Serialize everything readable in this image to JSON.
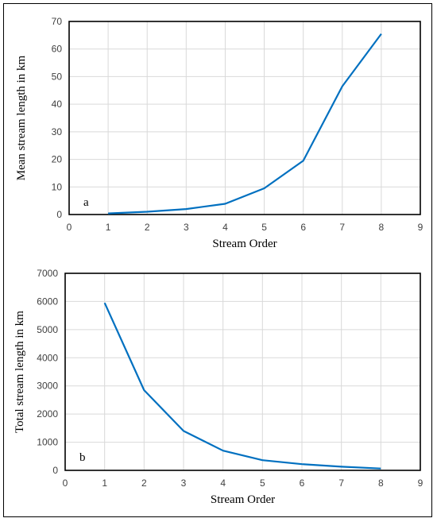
{
  "chart_data": [
    {
      "panel_label": "a",
      "type": "line",
      "xlabel": "Stream Order",
      "ylabel": "Mean stream length in km",
      "xlim": [
        0,
        9
      ],
      "ylim": [
        0,
        70
      ],
      "xticks": [
        "0",
        "1",
        "2",
        "3",
        "4",
        "5",
        "6",
        "7",
        "8",
        "9"
      ],
      "yticks": [
        "0",
        "10",
        "20",
        "30",
        "40",
        "50",
        "60",
        "70"
      ],
      "grid": true,
      "series_color": "#0070c0",
      "x": [
        1,
        2,
        3,
        4,
        5,
        6,
        7,
        8
      ],
      "values": [
        0.4,
        1.0,
        2.0,
        3.9,
        9.5,
        19.5,
        46.5,
        65.5
      ]
    },
    {
      "panel_label": "b",
      "type": "line",
      "xlabel": "Stream Order",
      "ylabel": "Total stream length in km",
      "xlim": [
        0,
        9
      ],
      "ylim": [
        0,
        7000
      ],
      "xticks": [
        "0",
        "1",
        "2",
        "3",
        "4",
        "5",
        "6",
        "7",
        "8",
        "9"
      ],
      "yticks": [
        "0",
        "1000",
        "2000",
        "3000",
        "4000",
        "5000",
        "6000",
        "7000"
      ],
      "grid": true,
      "series_color": "#0070c0",
      "x": [
        1,
        2,
        3,
        4,
        5,
        6,
        7,
        8
      ],
      "values": [
        5950,
        2850,
        1400,
        700,
        360,
        220,
        130,
        65
      ]
    }
  ]
}
